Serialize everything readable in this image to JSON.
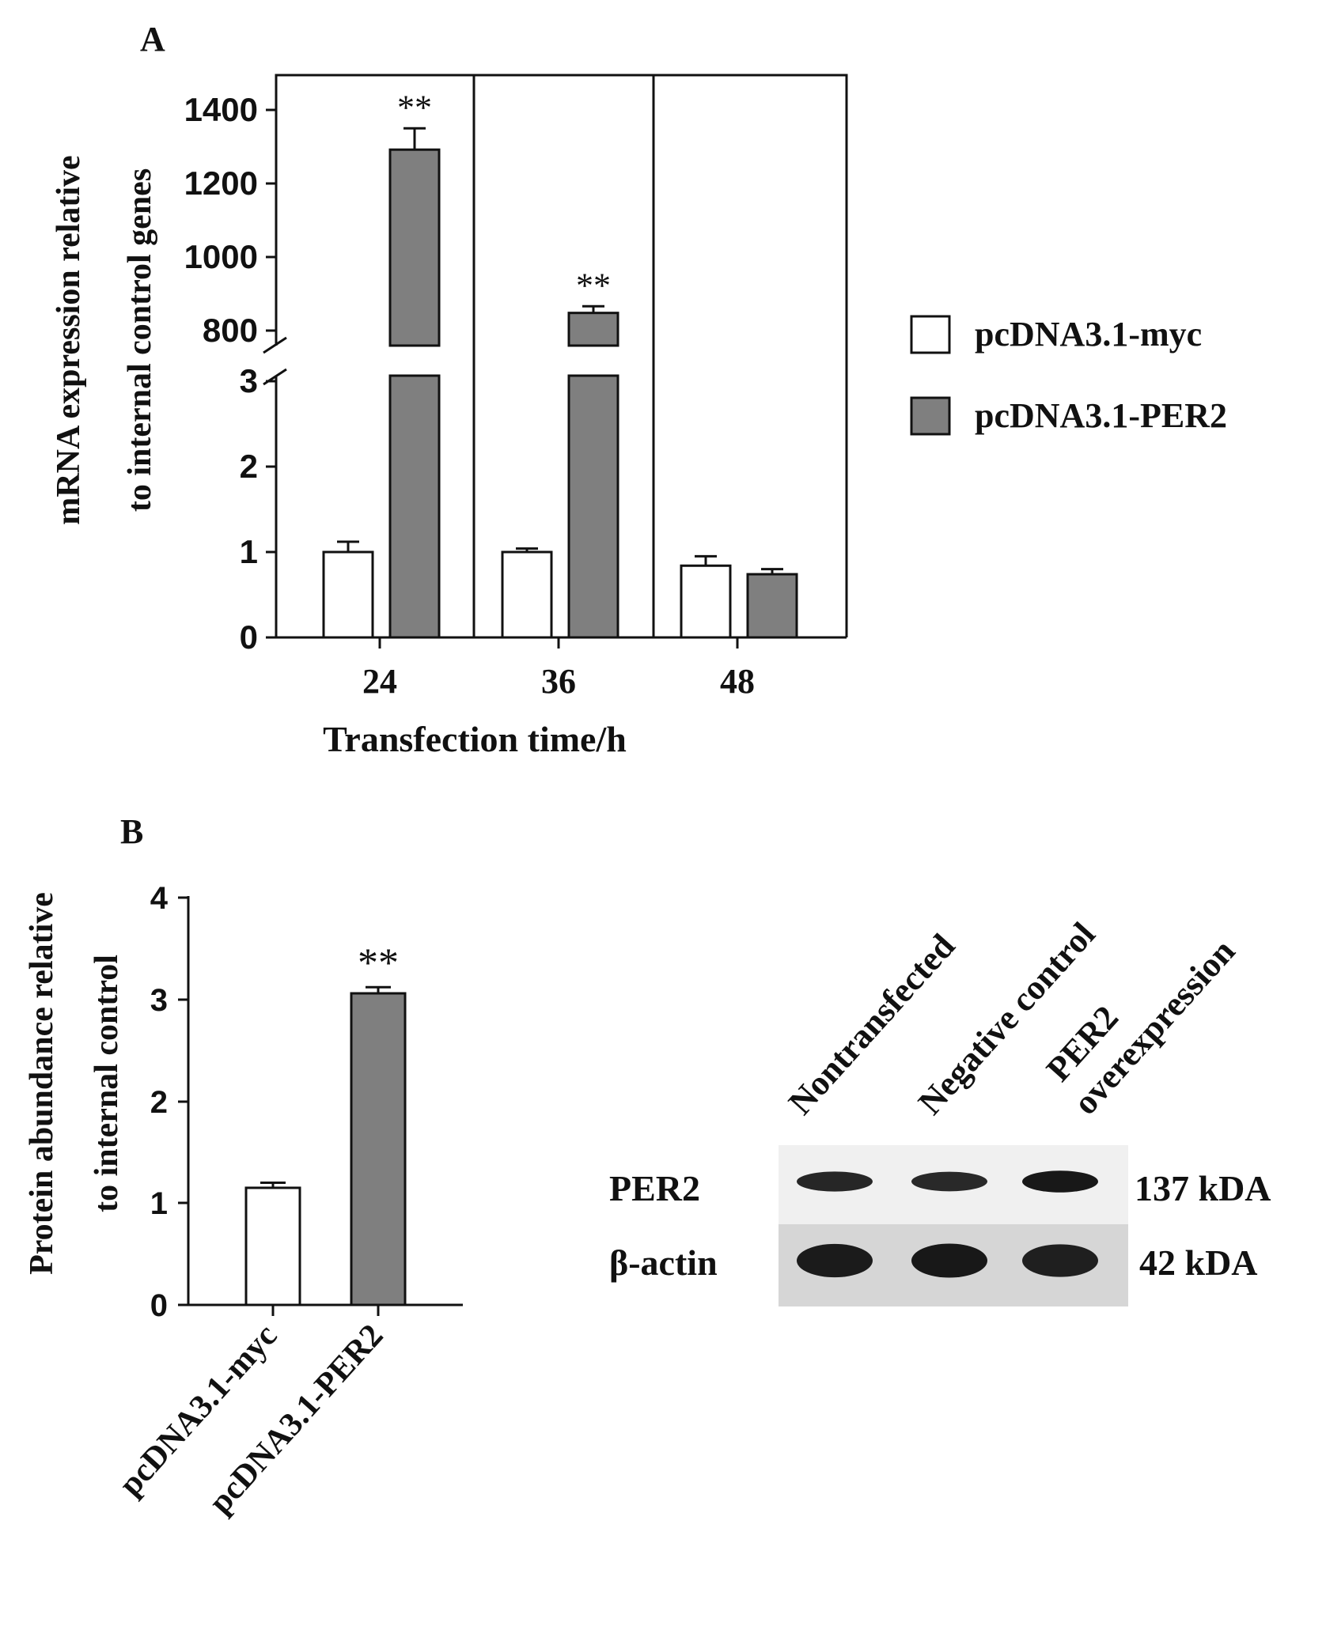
{
  "chart_data": [
    {
      "panel_label": "A",
      "type": "bar",
      "xlabel": "Transfection time/h",
      "ylabel_lines": [
        "mRNA expression relative",
        "to internal control genes"
      ],
      "categories": [
        "24",
        "36",
        "48"
      ],
      "y_broken": true,
      "y_lower_range": [
        0,
        3
      ],
      "y_upper_range": [
        700,
        1500
      ],
      "y_lower_ticks": [
        "0",
        "1",
        "2",
        "3"
      ],
      "y_upper_ticks": [
        "800",
        "1000",
        "1200",
        "1400"
      ],
      "series": [
        {
          "name": "pcDNA3.1-myc",
          "color": "#ffffff",
          "values": [
            1.0,
            1.0,
            0.84
          ],
          "errors": [
            0.12,
            0.04,
            0.11
          ]
        },
        {
          "name": "pcDNA3.1-PER2",
          "color": "#7f7f7f",
          "values": [
            1292,
            848,
            0.74
          ],
          "errors": [
            58,
            18,
            0.06
          ]
        }
      ],
      "significance": [
        {
          "category": "24",
          "series": "pcDNA3.1-PER2",
          "label": "**"
        },
        {
          "category": "36",
          "series": "pcDNA3.1-PER2",
          "label": "**"
        }
      ],
      "legend_position": "right",
      "grid": false
    },
    {
      "panel_label": "B",
      "type": "bar",
      "ylabel_lines": [
        "Protein abundance relative",
        "to internal control"
      ],
      "categories": [
        "pcDNA3.1-myc",
        "pcDNA3.1-PER2"
      ],
      "ylim": [
        0,
        4
      ],
      "y_ticks": [
        "0",
        "1",
        "2",
        "3",
        "4"
      ],
      "series": [
        {
          "values": [
            1.15,
            3.06
          ],
          "errors": [
            0.05,
            0.06
          ],
          "colors": [
            "#ffffff",
            "#7f7f7f"
          ]
        }
      ],
      "significance": [
        {
          "category": "pcDNA3.1-PER2",
          "label": "**"
        }
      ],
      "grid": false
    }
  ],
  "blot": {
    "lanes": [
      "Nontransfected",
      "Negative control",
      "PER2 overexpression"
    ],
    "lane_label_lines": [
      [
        "Nontransfected"
      ],
      [
        "Negative control"
      ],
      [
        "PER2",
        "overexpression"
      ]
    ],
    "rows": [
      {
        "protein": "PER2",
        "size": "137 kDA",
        "intensities": [
          0.75,
          0.7,
          0.95
        ]
      },
      {
        "protein": "β-actin",
        "size": "42 kDA",
        "intensities": [
          0.9,
          0.95,
          0.85
        ]
      }
    ]
  }
}
